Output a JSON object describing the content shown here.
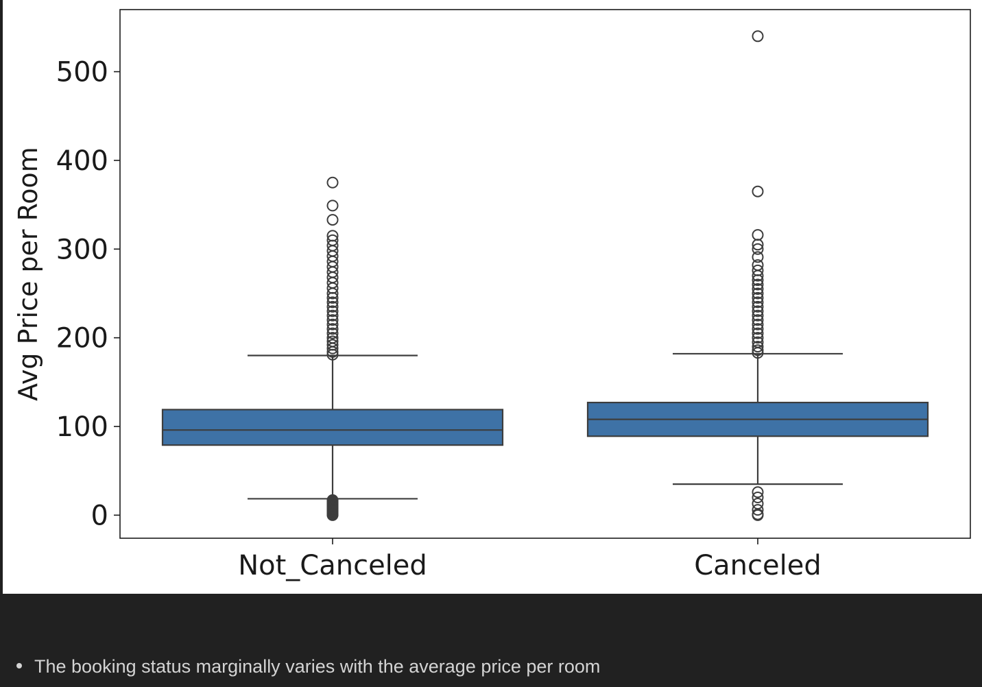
{
  "chart_data": {
    "type": "box",
    "xlabel": "",
    "ylabel": "Avg Price per Room",
    "categories": [
      "Not_Canceled",
      "Canceled"
    ],
    "ylim": [
      -26,
      570
    ],
    "yticks": [
      0,
      100,
      200,
      300,
      400,
      500
    ],
    "grid": false,
    "legend": "none",
    "box_color": "#3e72a6",
    "line_color": "#3d3d3d",
    "boxes": [
      {
        "category": "Not_Canceled",
        "whisker_low": 18.5,
        "q1": 79,
        "median": 96,
        "q3": 119,
        "whisker_high": 180,
        "outliers": [
          0,
          1,
          2,
          3,
          4,
          5,
          6,
          7,
          8,
          9,
          10,
          11,
          12,
          13,
          14,
          15,
          16,
          17,
          181,
          184,
          188,
          192,
          196,
          200,
          205,
          210,
          215,
          220,
          225,
          230,
          235,
          240,
          245,
          250,
          256,
          262,
          268,
          274,
          280,
          286,
          292,
          298,
          304,
          310,
          315,
          333,
          349,
          375
        ]
      },
      {
        "category": "Canceled",
        "whisker_low": 35,
        "q1": 89,
        "median": 108,
        "q3": 127,
        "whisker_high": 182,
        "outliers": [
          0,
          1,
          6,
          13,
          20,
          26,
          183,
          186,
          190,
          195,
          200,
          205,
          210,
          215,
          220,
          225,
          230,
          235,
          240,
          245,
          250,
          255,
          260,
          265,
          270,
          276,
          282,
          291,
          300,
          305,
          316,
          365,
          540
        ]
      }
    ]
  },
  "notes": {
    "bullet_text": "The booking status marginally varies with the average price per room"
  }
}
